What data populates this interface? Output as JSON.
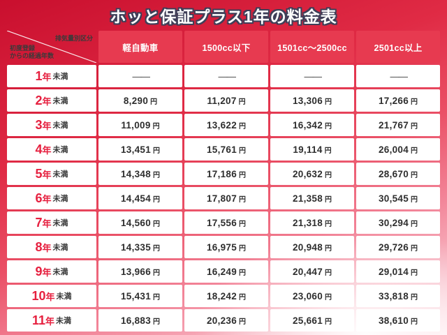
{
  "title": "ホッと保証プラス1年の料金表",
  "table": {
    "corner_top": "排気量別区分",
    "corner_bottom": "初度登録\nからの経過年数",
    "columns": [
      "軽自動車",
      "1500cc以下",
      "1501cc〜2500cc",
      "2501cc以上"
    ],
    "unit": "円",
    "year_suffix": "年",
    "less_than": "未満",
    "rows": [
      {
        "year": "1",
        "dash": true,
        "values": [
          "——",
          "——",
          "——",
          "——"
        ]
      },
      {
        "year": "2",
        "dash": false,
        "values": [
          "8,290",
          "11,207",
          "13,306",
          "17,266"
        ]
      },
      {
        "year": "3",
        "dash": false,
        "values": [
          "11,009",
          "13,622",
          "16,342",
          "21,767"
        ]
      },
      {
        "year": "4",
        "dash": false,
        "values": [
          "13,451",
          "15,761",
          "19,114",
          "26,004"
        ]
      },
      {
        "year": "5",
        "dash": false,
        "values": [
          "14,348",
          "17,186",
          "20,632",
          "28,670"
        ]
      },
      {
        "year": "6",
        "dash": false,
        "values": [
          "14,454",
          "17,807",
          "21,358",
          "30,545"
        ]
      },
      {
        "year": "7",
        "dash": false,
        "values": [
          "14,560",
          "17,556",
          "21,318",
          "30,294"
        ]
      },
      {
        "year": "8",
        "dash": false,
        "values": [
          "14,335",
          "16,975",
          "20,948",
          "29,726"
        ]
      },
      {
        "year": "9",
        "dash": false,
        "values": [
          "13,966",
          "16,249",
          "20,447",
          "29,014"
        ]
      },
      {
        "year": "10",
        "dash": false,
        "values": [
          "15,431",
          "18,242",
          "23,060",
          "33,818"
        ]
      },
      {
        "year": "11",
        "dash": false,
        "values": [
          "16,883",
          "20,236",
          "25,661",
          "38,610"
        ]
      }
    ]
  },
  "colors": {
    "header_red": "#e73a50",
    "accent_red": "#e6203f",
    "background_red": "#d61a36",
    "background_pink": "#fde8ec",
    "cell_white": "#ffffff",
    "text_dark": "#2e2e2e"
  },
  "chart_data": {
    "type": "table",
    "title": "ホッと保証プラス1年の料金表",
    "column_header_label": "排気量別区分",
    "row_header_label": "初度登録からの経過年数",
    "columns": [
      "軽自動車",
      "1500cc以下",
      "1501cc〜2500cc",
      "2501cc以上"
    ],
    "rows": [
      "1年未満",
      "2年未満",
      "3年未満",
      "4年未満",
      "5年未満",
      "6年未満",
      "7年未満",
      "8年未満",
      "9年未満",
      "10年未満",
      "11年未満"
    ],
    "values_yen": [
      [
        null,
        null,
        null,
        null
      ],
      [
        8290,
        11207,
        13306,
        17266
      ],
      [
        11009,
        13622,
        16342,
        21767
      ],
      [
        13451,
        15761,
        19114,
        26004
      ],
      [
        14348,
        17186,
        20632,
        28670
      ],
      [
        14454,
        17807,
        21358,
        30545
      ],
      [
        14560,
        17556,
        21318,
        30294
      ],
      [
        14335,
        16975,
        20948,
        29726
      ],
      [
        13966,
        16249,
        20447,
        29014
      ],
      [
        15431,
        18242,
        23060,
        33818
      ],
      [
        16883,
        20236,
        25661,
        38610
      ]
    ],
    "unit": "円"
  }
}
